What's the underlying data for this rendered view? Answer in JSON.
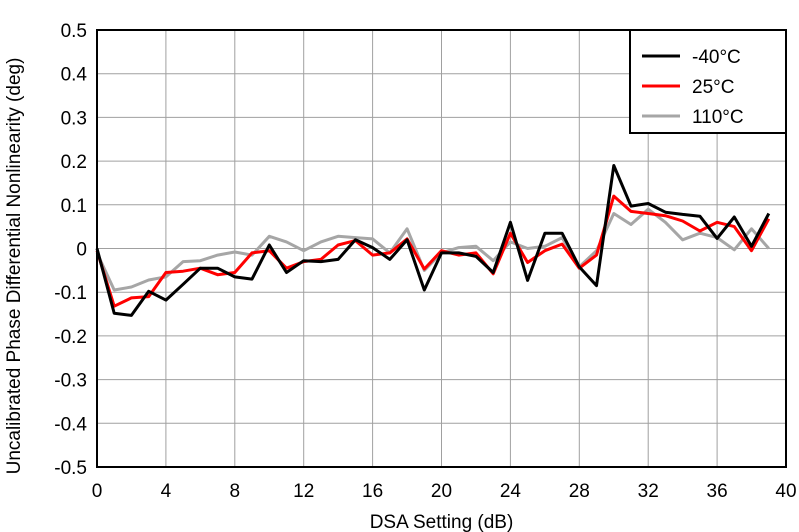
{
  "chart_data": {
    "type": "line",
    "title": "",
    "xlabel": "DSA Setting (dB)",
    "ylabel": "Uncalibrated Phase Differential Nonlinearity (deg)",
    "xlim": [
      0,
      40
    ],
    "ylim": [
      -0.5,
      0.5
    ],
    "xticks": [
      0,
      4,
      8,
      12,
      16,
      20,
      24,
      28,
      32,
      36,
      40
    ],
    "yticks": [
      0.5,
      0.4,
      0.3,
      0.2,
      0.1,
      0,
      -0.1,
      -0.2,
      -0.3,
      -0.4,
      -0.5
    ],
    "xtick_labels": [
      "0",
      "4",
      "8",
      "12",
      "16",
      "20",
      "24",
      "28",
      "32",
      "36",
      "40"
    ],
    "ytick_labels": [
      "0.5",
      "0.4",
      "0.3",
      "0.2",
      "0.1",
      "0",
      "-0.1",
      "-0.2",
      "-0.3",
      "-0.4",
      "-0.5"
    ],
    "grid": true,
    "legend_position": "top-right",
    "x": [
      0,
      1,
      2,
      3,
      4,
      5,
      6,
      7,
      8,
      9,
      10,
      11,
      12,
      13,
      14,
      15,
      16,
      17,
      18,
      19,
      20,
      21,
      22,
      23,
      24,
      25,
      26,
      27,
      28,
      29,
      30,
      31,
      32,
      33,
      34,
      35,
      36,
      37,
      38,
      39
    ],
    "series": [
      {
        "name": "-40°C",
        "color": "#000000",
        "values": [
          0,
          -0.148,
          -0.153,
          -0.098,
          -0.118,
          -0.082,
          -0.045,
          -0.045,
          -0.065,
          -0.07,
          0.008,
          -0.055,
          -0.028,
          -0.03,
          -0.025,
          0.02,
          0.002,
          -0.025,
          0.02,
          -0.095,
          -0.01,
          -0.01,
          -0.018,
          -0.055,
          0.06,
          -0.073,
          0.035,
          0.035,
          -0.042,
          -0.085,
          0.19,
          0.097,
          0.103,
          0.083,
          0.078,
          0.074,
          0.023,
          0.072,
          0.005,
          0.08
        ]
      },
      {
        "name": "25°C",
        "color": "#ff0000",
        "values": [
          -0.005,
          -0.132,
          -0.113,
          -0.11,
          -0.055,
          -0.052,
          -0.045,
          -0.06,
          -0.055,
          -0.01,
          -0.005,
          -0.045,
          -0.03,
          -0.025,
          0.008,
          0.018,
          -0.015,
          -0.01,
          0.022,
          -0.047,
          -0.005,
          -0.015,
          -0.01,
          -0.058,
          0.035,
          -0.032,
          -0.005,
          0.01,
          -0.045,
          -0.015,
          0.12,
          0.085,
          0.08,
          0.075,
          0.063,
          0.04,
          0.06,
          0.05,
          -0.005,
          0.068
        ]
      },
      {
        "name": "110°C",
        "color": "#a6a6a6",
        "values": [
          -0.01,
          -0.095,
          -0.088,
          -0.072,
          -0.065,
          -0.03,
          -0.028,
          -0.015,
          -0.008,
          -0.015,
          0.028,
          0.015,
          -0.005,
          0.015,
          0.028,
          0.025,
          0.022,
          -0.01,
          0.045,
          -0.05,
          -0.01,
          0.002,
          0.005,
          -0.028,
          0.015,
          0,
          0.005,
          0.025,
          -0.042,
          -0.005,
          0.08,
          0.055,
          0.09,
          0.06,
          0.02,
          0.035,
          0.025,
          -0.003,
          0.045,
          0
        ]
      }
    ]
  }
}
